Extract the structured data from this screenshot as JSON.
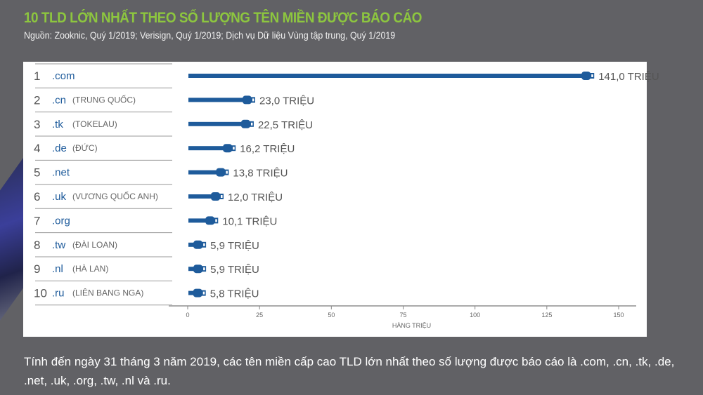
{
  "title": "10 TLD LỚN NHẤT THEO SỐ LƯỢNG TÊN MIỀN ĐƯỢC BÁO CÁO",
  "subtitle": "Nguồn: Zooknic, Quý 1/2019; Verisign, Quý 1/2019; Dịch vụ Dữ liệu Vùng tập trung, Quý 1/2019",
  "footer": "Tính đến ngày 31 tháng 3 năm 2019, các tên miền cấp cao TLD lớn nhất theo số lượng được báo cáo là .com, .cn, .tk, .de, .net, .uk, .org, .tw, .nl và .ru.",
  "colors": {
    "bar": "#1e5b9b",
    "title": "#8dc63f",
    "background": "#616165"
  },
  "chart_data": {
    "type": "bar",
    "orientation": "horizontal",
    "xlabel": "HÀNG TRIỆU",
    "xlim": [
      0,
      150
    ],
    "xticks": [
      "0",
      "25",
      "50",
      "75",
      "100",
      "125",
      "150"
    ],
    "value_suffix": " TRIỆU",
    "rows": [
      {
        "rank": "1",
        "tld": ".com",
        "country": "",
        "value": 141.0,
        "label": "141,0 TRIỆU"
      },
      {
        "rank": "2",
        "tld": ".cn",
        "country": "(TRUNG QUỐC)",
        "value": 23.0,
        "label": "23,0 TRIỆU"
      },
      {
        "rank": "3",
        "tld": ".tk",
        "country": "(TOKELAU)",
        "value": 22.5,
        "label": "22,5 TRIỆU"
      },
      {
        "rank": "4",
        "tld": ".de",
        "country": "(ĐỨC)",
        "value": 16.2,
        "label": "16,2 TRIỆU"
      },
      {
        "rank": "5",
        "tld": ".net",
        "country": "",
        "value": 13.8,
        "label": "13,8 TRIỆU"
      },
      {
        "rank": "6",
        "tld": ".uk",
        "country": "(VƯƠNG QUỐC ANH)",
        "value": 12.0,
        "label": "12,0 TRIỆU"
      },
      {
        "rank": "7",
        "tld": ".org",
        "country": "",
        "value": 10.1,
        "label": "10,1 TRIỆU"
      },
      {
        "rank": "8",
        "tld": ".tw",
        "country": "(ĐÀI LOAN)",
        "value": 5.9,
        "label": "5,9 TRIỆU"
      },
      {
        "rank": "9",
        "tld": ".nl",
        "country": "(HÀ LAN)",
        "value": 5.9,
        "label": "5,9 TRIỆU"
      },
      {
        "rank": "10",
        "tld": ".ru",
        "country": "(LIÊN BANG NGA)",
        "value": 5.8,
        "label": "5,8 TRIỆU"
      }
    ]
  }
}
